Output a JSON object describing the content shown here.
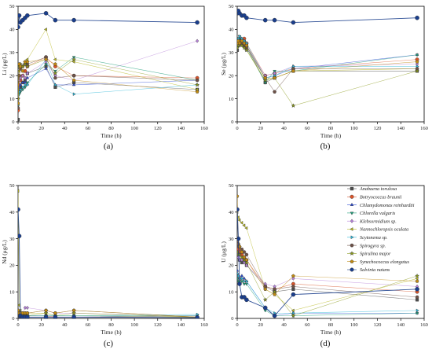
{
  "figure": {
    "colors": {
      "axis": "#000000"
    }
  },
  "series_defs": [
    {
      "name": "Anabaena torulosa",
      "color": "#4d4d4d",
      "marker": "square"
    },
    {
      "name": "Botryococcus braunii",
      "color": "#d9542a",
      "marker": "circle"
    },
    {
      "name": "Chlamydomonas reinhardtii",
      "color": "#2b4bd6",
      "marker": "triangle-up"
    },
    {
      "name": "Chlorella vulgaris",
      "color": "#1e9e7a",
      "marker": "triangle-down"
    },
    {
      "name": "Klebsormidium sp.",
      "color": "#b682d9",
      "marker": "diamond"
    },
    {
      "name": "Nannochloropsis oculata",
      "color": "#b8b820",
      "marker": "triangle-left"
    },
    {
      "name": "Scytonema sp.",
      "color": "#2fb8d9",
      "marker": "triangle-right"
    },
    {
      "name": "Spirogyra sp.",
      "color": "#6e5248",
      "marker": "hexagon"
    },
    {
      "name": "Spirulina major",
      "color": "#8a9a1a",
      "marker": "star"
    },
    {
      "name": "Synechococcus elongatus",
      "color": "#c08a12",
      "marker": "pentagon"
    },
    {
      "name": "Salvinia natans",
      "color": "#1a3e8c",
      "marker": "circle"
    }
  ],
  "chart_data": [
    {
      "id": "a",
      "type": "line",
      "panel_label": "(a)",
      "xlabel": "Time (h)",
      "ylabel": "Li (μg/L)",
      "xlim": [
        0,
        160
      ],
      "ylim": [
        0,
        50
      ],
      "xticks": [
        0,
        20,
        40,
        60,
        80,
        100,
        120,
        140,
        160
      ],
      "yticks": [
        0,
        10,
        20,
        30,
        40,
        50
      ],
      "x": [
        0,
        1,
        2,
        4,
        6,
        8,
        24,
        32,
        48,
        154
      ],
      "series": [
        {
          "name": "Anabaena torulosa",
          "values": [
            1,
            14,
            15,
            17,
            18,
            21,
            24,
            15,
            17,
            14
          ]
        },
        {
          "name": "Botryococcus braunii",
          "values": [
            5,
            16,
            18,
            20,
            22,
            24,
            28,
            24,
            20,
            19
          ]
        },
        {
          "name": "Chlamydomonas reinhardtii",
          "values": [
            6,
            15,
            16,
            17,
            17,
            19,
            23,
            16,
            16,
            18
          ]
        },
        {
          "name": "Chlorella vulgaris",
          "values": [
            7,
            12,
            13,
            14,
            15,
            17,
            25,
            22,
            28,
            18
          ]
        },
        {
          "name": "Klebsormidium sp.",
          "values": [
            6,
            18,
            19,
            20,
            19,
            21,
            26,
            20,
            18,
            35
          ]
        },
        {
          "name": "Nannochloropsis oculata",
          "values": [
            8,
            22,
            23,
            24,
            26,
            27,
            40,
            27,
            26,
            14
          ]
        },
        {
          "name": "Scytonema sp.",
          "values": [
            10,
            13,
            14,
            15,
            16,
            16,
            27,
            16,
            12,
            16
          ]
        },
        {
          "name": "Spirogyra sp.",
          "values": [
            6,
            20,
            23,
            24,
            25,
            25,
            28,
            19,
            20,
            18
          ]
        },
        {
          "name": "Spirulina major",
          "values": [
            10,
            24,
            25,
            24,
            25,
            24,
            27,
            21,
            27,
            16
          ]
        },
        {
          "name": "Synechococcus elongatus",
          "values": [
            8,
            25,
            24,
            22,
            26,
            26,
            27,
            25,
            18,
            13
          ]
        },
        {
          "name": "Salvinia natans",
          "values": [
            41,
            46,
            43,
            44,
            45,
            46,
            47,
            44,
            44,
            43
          ]
        }
      ]
    },
    {
      "id": "b",
      "type": "line",
      "panel_label": "(b)",
      "xlabel": "Time (h)",
      "ylabel": "Se (μg/L)",
      "xlim": [
        0,
        160
      ],
      "ylim": [
        0,
        50
      ],
      "xticks": [
        0,
        20,
        40,
        60,
        80,
        100,
        120,
        140,
        160
      ],
      "yticks": [
        0,
        10,
        20,
        30,
        40,
        50
      ],
      "x": [
        0,
        1,
        2,
        4,
        6,
        8,
        24,
        32,
        48,
        154
      ],
      "series": [
        {
          "name": "Anabaena torulosa",
          "values": [
            31,
            33,
            34,
            35,
            34,
            33,
            17,
            19,
            22,
            22
          ]
        },
        {
          "name": "Botryococcus braunii",
          "values": [
            35,
            34,
            36,
            35,
            36,
            34,
            20,
            21,
            23,
            27
          ]
        },
        {
          "name": "Chlamydomonas reinhardtii",
          "values": [
            34,
            35,
            36,
            36,
            35,
            33,
            19,
            20,
            23,
            29
          ]
        },
        {
          "name": "Chlorella vulgaris",
          "values": [
            33,
            36,
            37,
            35,
            35,
            32,
            17,
            22,
            22,
            29
          ]
        },
        {
          "name": "Klebsormidium sp.",
          "values": [
            34,
            35,
            35,
            34,
            35,
            33,
            20,
            21,
            24,
            25
          ]
        },
        {
          "name": "Nannochloropsis oculata",
          "values": [
            32,
            34,
            35,
            33,
            34,
            31,
            18,
            19,
            22,
            23
          ]
        },
        {
          "name": "Scytonema sp.",
          "values": [
            35,
            36,
            37,
            36,
            35,
            34,
            19,
            20,
            24,
            24
          ]
        },
        {
          "name": "Spirogyra sp.",
          "values": [
            33,
            34,
            35,
            34,
            33,
            32,
            19,
            13,
            23,
            23
          ]
        },
        {
          "name": "Spirulina major",
          "values": [
            32,
            33,
            34,
            33,
            32,
            31,
            18,
            19,
            7,
            22
          ]
        },
        {
          "name": "Synechococcus elongatus",
          "values": [
            34,
            35,
            34,
            35,
            34,
            33,
            19,
            19,
            22,
            26
          ]
        },
        {
          "name": "Salvinia natans",
          "values": [
            47,
            48,
            47,
            46,
            46,
            45,
            44,
            44,
            43,
            45
          ]
        }
      ]
    },
    {
      "id": "c",
      "type": "line",
      "panel_label": "(c)",
      "xlabel": "Time (h)",
      "ylabel": "Nd (μg/L)",
      "xlim": [
        0,
        160
      ],
      "ylim": [
        0,
        50
      ],
      "xticks": [
        0,
        20,
        40,
        60,
        80,
        100,
        120,
        140,
        160
      ],
      "yticks": [
        0,
        10,
        20,
        30,
        40,
        50
      ],
      "x": [
        0,
        1,
        2,
        4,
        6,
        8,
        24,
        32,
        48,
        154
      ],
      "series": [
        {
          "name": "Anabaena torulosa",
          "values": [
            1,
            0.5,
            0.5,
            0.5,
            0.5,
            0.5,
            0.5,
            0.5,
            0.5,
            0.3
          ]
        },
        {
          "name": "Botryococcus braunii",
          "values": [
            2,
            1,
            1,
            1,
            1,
            1,
            1,
            0.5,
            0.5,
            0.3
          ]
        },
        {
          "name": "Chlamydomonas reinhardtii",
          "values": [
            1,
            0.5,
            0.5,
            0.5,
            0.5,
            0.5,
            0.5,
            0.5,
            0.5,
            1
          ]
        },
        {
          "name": "Chlorella vulgaris",
          "values": [
            2,
            1,
            1,
            1,
            1,
            1,
            1,
            1,
            1,
            1
          ]
        },
        {
          "name": "Klebsormidium sp.",
          "values": [
            3,
            2,
            2,
            2,
            4,
            4,
            3,
            2,
            2,
            0.5
          ]
        },
        {
          "name": "Nannochloropsis oculata",
          "values": [
            48,
            5,
            3,
            2,
            2,
            2,
            2,
            1,
            1,
            0.5
          ]
        },
        {
          "name": "Scytonema sp.",
          "values": [
            2,
            1,
            1,
            1,
            1,
            1,
            1,
            1,
            1,
            1.5
          ]
        },
        {
          "name": "Spirogyra sp.",
          "values": [
            3,
            2,
            2,
            2,
            2,
            2,
            3,
            2,
            3,
            0.5
          ]
        },
        {
          "name": "Spirulina major",
          "values": [
            2,
            1,
            1,
            1,
            1,
            1,
            2,
            1,
            2,
            0.5
          ]
        },
        {
          "name": "Synechococcus elongatus",
          "values": [
            3,
            2,
            2,
            2,
            2,
            2,
            3,
            2,
            3,
            0.5
          ]
        },
        {
          "name": "Salvinia natans",
          "values": [
            41,
            31,
            1,
            0.5,
            0.5,
            0.5,
            0.5,
            0.5,
            0.5,
            0.3
          ]
        }
      ]
    },
    {
      "id": "d",
      "type": "line",
      "panel_label": "(d)",
      "xlabel": "Time (h)",
      "ylabel": "U (μg/L)",
      "xlim": [
        0,
        160
      ],
      "ylim": [
        0,
        50
      ],
      "xticks": [
        0,
        20,
        40,
        60,
        80,
        100,
        120,
        140,
        160
      ],
      "yticks": [
        0,
        10,
        20,
        30,
        40,
        50
      ],
      "x": [
        0,
        1,
        2,
        4,
        6,
        8,
        24,
        32,
        48,
        154
      ],
      "series": [
        {
          "name": "Anabaena torulosa",
          "values": [
            27,
            24,
            22,
            21,
            22,
            20,
            12,
            10,
            11,
            7
          ]
        },
        {
          "name": "Botryococcus braunii",
          "values": [
            28,
            26,
            25,
            24,
            23,
            22,
            12,
            11,
            13,
            10
          ]
        },
        {
          "name": "Chlamydomonas reinhardtii",
          "values": [
            18,
            16,
            15,
            16,
            15,
            14,
            4,
            1,
            2,
            2
          ]
        },
        {
          "name": "Chlorella vulgaris",
          "values": [
            15,
            14,
            14,
            14,
            13,
            13,
            3,
            1,
            1,
            2
          ]
        },
        {
          "name": "Klebsormidium sp.",
          "values": [
            24,
            23,
            22,
            22,
            21,
            20,
            13,
            12,
            15,
            12
          ]
        },
        {
          "name": "Nannochloropsis oculata",
          "values": [
            40,
            38,
            37,
            36,
            35,
            34,
            11,
            9,
            3,
            15
          ]
        },
        {
          "name": "Scytonema sp.",
          "values": [
            17,
            16,
            15,
            15,
            14,
            14,
            4,
            2,
            2,
            3
          ]
        },
        {
          "name": "Spirogyra sp.",
          "values": [
            29,
            28,
            27,
            26,
            25,
            24,
            12,
            11,
            12,
            8
          ]
        },
        {
          "name": "Spirulina major",
          "values": [
            25,
            24,
            24,
            23,
            22,
            21,
            7,
            10,
            1,
            16
          ]
        },
        {
          "name": "Synechococcus elongatus",
          "values": [
            46,
            30,
            27,
            25,
            23,
            22,
            11,
            9,
            16,
            14
          ]
        },
        {
          "name": "Salvinia natans",
          "values": [
            41,
            30,
            13,
            8,
            8,
            7,
            4,
            1,
            9,
            11
          ]
        }
      ]
    }
  ]
}
